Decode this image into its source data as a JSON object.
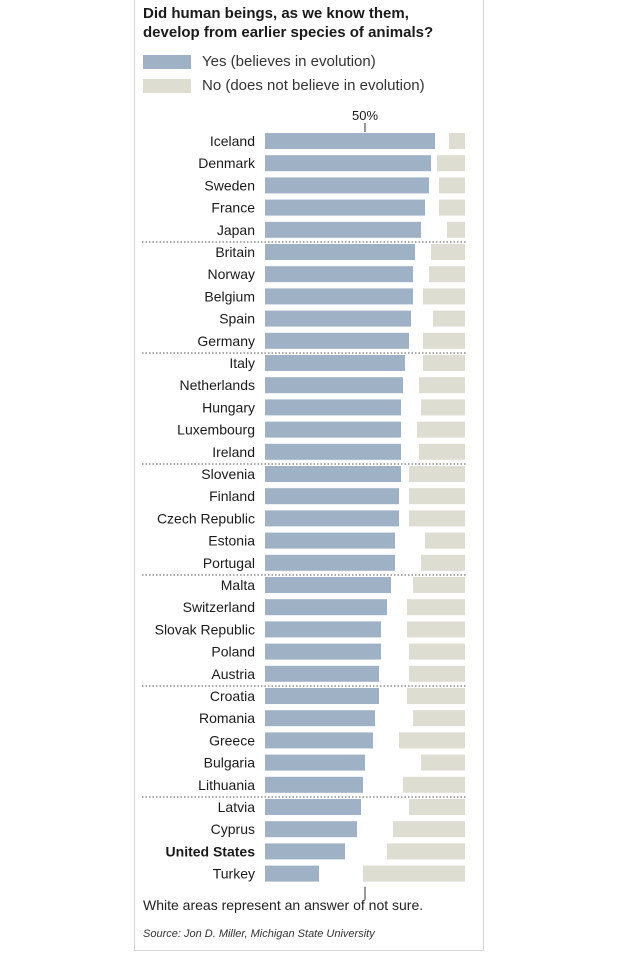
{
  "colors": {
    "yes": "#9eb1c5",
    "no": "#deddd2",
    "separator": "#555555",
    "text": "#1a1a1a"
  },
  "header": {
    "title_line1": "Did human beings, as we know them,",
    "title_line2": "develop from earlier species of animals?"
  },
  "legend": {
    "yes_label": "Yes (believes in evolution)",
    "no_label": "No (does not believe in evolution)"
  },
  "chart_data": {
    "type": "bar",
    "orientation": "horizontal",
    "stacked_layout": "yes from left, no from right, gap = not sure",
    "reference_label": "50%",
    "reference_value": 50,
    "xlim": [
      0,
      100
    ],
    "categories": [
      "Iceland",
      "Denmark",
      "Sweden",
      "France",
      "Japan",
      "Britain",
      "Norway",
      "Belgium",
      "Spain",
      "Germany",
      "Italy",
      "Netherlands",
      "Hungary",
      "Luxembourg",
      "Ireland",
      "Slovenia",
      "Finland",
      "Czech Republic",
      "Estonia",
      "Portugal",
      "Malta",
      "Switzerland",
      "Slovak Republic",
      "Poland",
      "Austria",
      "Croatia",
      "Romania",
      "Greece",
      "Bulgaria",
      "Lithuania",
      "Latvia",
      "Cyprus",
      "United States",
      "Turkey"
    ],
    "highlight": "United States",
    "group_size": 5,
    "series": [
      {
        "name": "Yes (believes in evolution)",
        "values": [
          85,
          83,
          82,
          80,
          78,
          75,
          74,
          74,
          73,
          72,
          70,
          69,
          68,
          68,
          68,
          68,
          67,
          67,
          65,
          65,
          63,
          61,
          58,
          58,
          57,
          57,
          55,
          54,
          50,
          49,
          48,
          46,
          40,
          27
        ]
      },
      {
        "name": "No (does not believe in evolution)",
        "values": [
          8,
          14,
          13,
          13,
          9,
          17,
          18,
          21,
          16,
          21,
          21,
          23,
          22,
          24,
          23,
          28,
          28,
          28,
          20,
          22,
          26,
          29,
          29,
          28,
          28,
          29,
          26,
          33,
          22,
          31,
          28,
          36,
          39,
          51
        ]
      }
    ]
  },
  "footnote": "White areas represent an answer of not sure.",
  "source": "Source: Jon D. Miller, Michigan State University"
}
